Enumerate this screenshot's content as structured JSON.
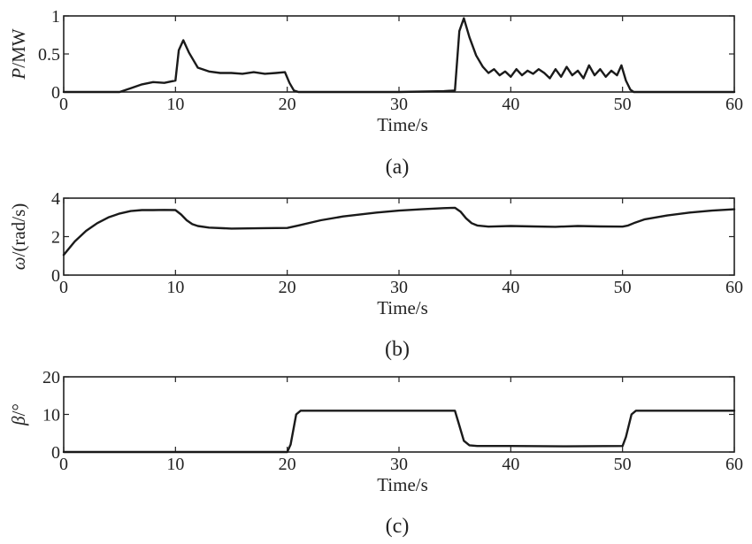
{
  "chart_data": [
    {
      "type": "line",
      "caption": "(a)",
      "xlabel": "Time/s",
      "ylabel": {
        "symbol": "P",
        "unit": "/MW"
      },
      "xlim": [
        0,
        60
      ],
      "ylim": [
        0,
        1
      ],
      "xticks": [
        0,
        10,
        20,
        30,
        40,
        50,
        60
      ],
      "yticks": [
        0,
        0.5,
        1
      ],
      "series": [
        {
          "x": [
            0,
            5,
            6,
            7,
            8,
            9,
            10,
            10.3,
            10.7,
            11.2,
            12,
            13,
            14,
            15,
            16,
            17,
            18,
            19,
            19.8,
            20.2,
            20.6,
            21,
            30,
            34,
            35,
            35.4,
            35.8,
            36.3,
            36.9,
            37.5,
            38,
            38.5,
            39,
            39.5,
            40,
            40.5,
            41,
            41.5,
            42,
            42.5,
            43,
            43.5,
            44,
            44.5,
            45,
            45.5,
            46,
            46.5,
            47,
            47.5,
            48,
            48.5,
            49,
            49.5,
            49.9,
            50.3,
            50.7,
            51,
            60
          ],
          "y": [
            0,
            0,
            0.05,
            0.1,
            0.13,
            0.12,
            0.15,
            0.55,
            0.68,
            0.52,
            0.32,
            0.27,
            0.25,
            0.25,
            0.24,
            0.26,
            0.24,
            0.25,
            0.26,
            0.12,
            0.02,
            0,
            0,
            0.01,
            0.02,
            0.8,
            0.97,
            0.72,
            0.48,
            0.33,
            0.25,
            0.3,
            0.22,
            0.27,
            0.2,
            0.3,
            0.22,
            0.28,
            0.24,
            0.3,
            0.25,
            0.18,
            0.3,
            0.2,
            0.33,
            0.22,
            0.28,
            0.18,
            0.35,
            0.22,
            0.3,
            0.2,
            0.28,
            0.22,
            0.35,
            0.15,
            0.03,
            0,
            0
          ]
        }
      ]
    },
    {
      "type": "line",
      "caption": "(b)",
      "xlabel": "Time/s",
      "ylabel": {
        "symbol": "ω",
        "unit": "/(rad/s)"
      },
      "xlim": [
        0,
        60
      ],
      "ylim": [
        0,
        4
      ],
      "xticks": [
        0,
        10,
        20,
        30,
        40,
        50,
        60
      ],
      "yticks": [
        0,
        2,
        4
      ],
      "series": [
        {
          "x": [
            0,
            1,
            2,
            3,
            4,
            5,
            6,
            7,
            8,
            9,
            10,
            10.5,
            11,
            11.5,
            12,
            13,
            15,
            18,
            20,
            21,
            23,
            25,
            28,
            30,
            32,
            34,
            35,
            35.5,
            36,
            36.5,
            37,
            38,
            40,
            42,
            44,
            46,
            48,
            50,
            50.5,
            51,
            52,
            54,
            56,
            58,
            60
          ],
          "y": [
            1.05,
            1.75,
            2.3,
            2.7,
            3.0,
            3.2,
            3.33,
            3.38,
            3.38,
            3.39,
            3.38,
            3.15,
            2.85,
            2.65,
            2.55,
            2.47,
            2.42,
            2.44,
            2.45,
            2.58,
            2.85,
            3.05,
            3.25,
            3.35,
            3.42,
            3.48,
            3.5,
            3.3,
            2.95,
            2.7,
            2.58,
            2.52,
            2.55,
            2.53,
            2.51,
            2.55,
            2.53,
            2.52,
            2.58,
            2.7,
            2.9,
            3.1,
            3.25,
            3.35,
            3.42
          ]
        }
      ]
    },
    {
      "type": "line",
      "caption": "(c)",
      "xlabel": "Time/s",
      "ylabel": {
        "symbol": "β",
        "unit": "/°"
      },
      "xlim": [
        0,
        60
      ],
      "ylim": [
        0,
        20
      ],
      "xticks": [
        0,
        10,
        20,
        30,
        40,
        50,
        60
      ],
      "yticks": [
        0,
        10,
        20
      ],
      "series": [
        {
          "x": [
            0,
            20,
            20.3,
            20.8,
            21.2,
            25,
            30,
            35,
            35.3,
            35.8,
            36.3,
            37,
            40,
            45,
            50,
            50.3,
            50.8,
            51.2,
            55,
            60
          ],
          "y": [
            0,
            0,
            2,
            10,
            11,
            11,
            11,
            11,
            8,
            3,
            1.8,
            1.6,
            1.6,
            1.5,
            1.6,
            4,
            10,
            11,
            11,
            11
          ]
        }
      ]
    }
  ]
}
